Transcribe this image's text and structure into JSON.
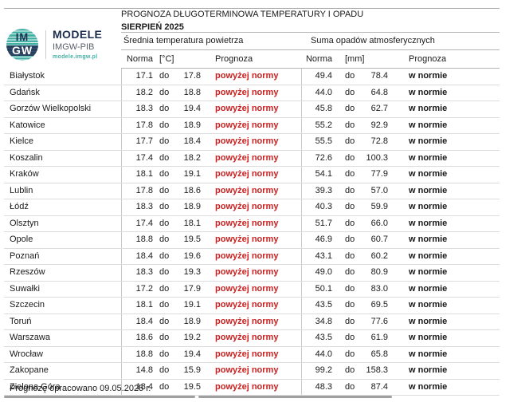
{
  "logo": {
    "icon_top": "IM",
    "icon_bottom": "GW",
    "brand": "MODELE",
    "org": "IMGW-PIB",
    "url": "modele.imgw.pl"
  },
  "header": {
    "title": "PROGNOZA DŁUGOTERMINOWA TEMPERATURY I OPADU",
    "subtitle": "SIERPIEŃ 2025"
  },
  "table": {
    "group_headers": {
      "temperature": "Średnia temperatura powietrza",
      "precipitation": "Suma opadów atmosferycznych"
    },
    "column_headers": {
      "temp_norma": "Norma",
      "temp_unit": "[°C]",
      "temp_prognoza": "Prognoza",
      "precip_norma": "Norma",
      "precip_unit": "[mm]",
      "precip_prognoza": "Prognoza"
    },
    "do_label": "do",
    "rows": [
      {
        "city": "Białystok",
        "t_min": "17.1",
        "t_max": "17.8",
        "t_forecast": "powyżej normy",
        "p_min": "49.4",
        "p_max": "78.4",
        "p_forecast": "w normie"
      },
      {
        "city": "Gdańsk",
        "t_min": "18.2",
        "t_max": "18.8",
        "t_forecast": "powyżej normy",
        "p_min": "44.0",
        "p_max": "64.8",
        "p_forecast": "w normie"
      },
      {
        "city": "Gorzów Wielkopolski",
        "t_min": "18.3",
        "t_max": "19.4",
        "t_forecast": "powyżej normy",
        "p_min": "45.8",
        "p_max": "62.7",
        "p_forecast": "w normie"
      },
      {
        "city": "Katowice",
        "t_min": "17.8",
        "t_max": "18.9",
        "t_forecast": "powyżej normy",
        "p_min": "55.2",
        "p_max": "92.9",
        "p_forecast": "w normie"
      },
      {
        "city": "Kielce",
        "t_min": "17.7",
        "t_max": "18.4",
        "t_forecast": "powyżej normy",
        "p_min": "55.5",
        "p_max": "72.8",
        "p_forecast": "w normie"
      },
      {
        "city": "Koszalin",
        "t_min": "17.4",
        "t_max": "18.2",
        "t_forecast": "powyżej normy",
        "p_min": "72.6",
        "p_max": "100.3",
        "p_forecast": "w normie"
      },
      {
        "city": "Kraków",
        "t_min": "18.1",
        "t_max": "19.1",
        "t_forecast": "powyżej normy",
        "p_min": "54.1",
        "p_max": "77.9",
        "p_forecast": "w normie"
      },
      {
        "city": "Lublin",
        "t_min": "17.8",
        "t_max": "18.6",
        "t_forecast": "powyżej normy",
        "p_min": "39.3",
        "p_max": "57.0",
        "p_forecast": "w normie"
      },
      {
        "city": "Łódź",
        "t_min": "18.3",
        "t_max": "18.9",
        "t_forecast": "powyżej normy",
        "p_min": "40.3",
        "p_max": "59.9",
        "p_forecast": "w normie"
      },
      {
        "city": "Olsztyn",
        "t_min": "17.4",
        "t_max": "18.1",
        "t_forecast": "powyżej normy",
        "p_min": "51.7",
        "p_max": "66.0",
        "p_forecast": "w normie"
      },
      {
        "city": "Opole",
        "t_min": "18.8",
        "t_max": "19.5",
        "t_forecast": "powyżej normy",
        "p_min": "46.9",
        "p_max": "60.7",
        "p_forecast": "w normie"
      },
      {
        "city": "Poznań",
        "t_min": "18.4",
        "t_max": "19.6",
        "t_forecast": "powyżej normy",
        "p_min": "43.1",
        "p_max": "60.2",
        "p_forecast": "w normie"
      },
      {
        "city": "Rzeszów",
        "t_min": "18.3",
        "t_max": "19.3",
        "t_forecast": "powyżej normy",
        "p_min": "49.0",
        "p_max": "80.9",
        "p_forecast": "w normie"
      },
      {
        "city": "Suwałki",
        "t_min": "17.2",
        "t_max": "17.9",
        "t_forecast": "powyżej normy",
        "p_min": "50.1",
        "p_max": "83.0",
        "p_forecast": "w normie"
      },
      {
        "city": "Szczecin",
        "t_min": "18.1",
        "t_max": "19.1",
        "t_forecast": "powyżej normy",
        "p_min": "43.5",
        "p_max": "69.5",
        "p_forecast": "w normie"
      },
      {
        "city": "Toruń",
        "t_min": "18.4",
        "t_max": "18.9",
        "t_forecast": "powyżej normy",
        "p_min": "34.8",
        "p_max": "77.6",
        "p_forecast": "w normie"
      },
      {
        "city": "Warszawa",
        "t_min": "18.6",
        "t_max": "19.2",
        "t_forecast": "powyżej normy",
        "p_min": "43.5",
        "p_max": "61.9",
        "p_forecast": "w normie"
      },
      {
        "city": "Wrocław",
        "t_min": "18.8",
        "t_max": "19.4",
        "t_forecast": "powyżej normy",
        "p_min": "44.0",
        "p_max": "65.8",
        "p_forecast": "w normie"
      },
      {
        "city": "Zakopane",
        "t_min": "14.8",
        "t_max": "15.9",
        "t_forecast": "powyżej normy",
        "p_min": "99.2",
        "p_max": "158.3",
        "p_forecast": "w normie"
      },
      {
        "city": "Zielona Góra",
        "t_min": "18.4",
        "t_max": "19.5",
        "t_forecast": "powyżej normy",
        "p_min": "48.3",
        "p_max": "87.4",
        "p_forecast": "w normie"
      }
    ]
  },
  "footer": {
    "note": "Prognozę opracowano 09.05.2025 r."
  },
  "colors": {
    "forecast_above": "#cc2020",
    "forecast_norm": "#1a1a1a",
    "accent_teal": "#45b0a6",
    "navy": "#1d2d50"
  }
}
